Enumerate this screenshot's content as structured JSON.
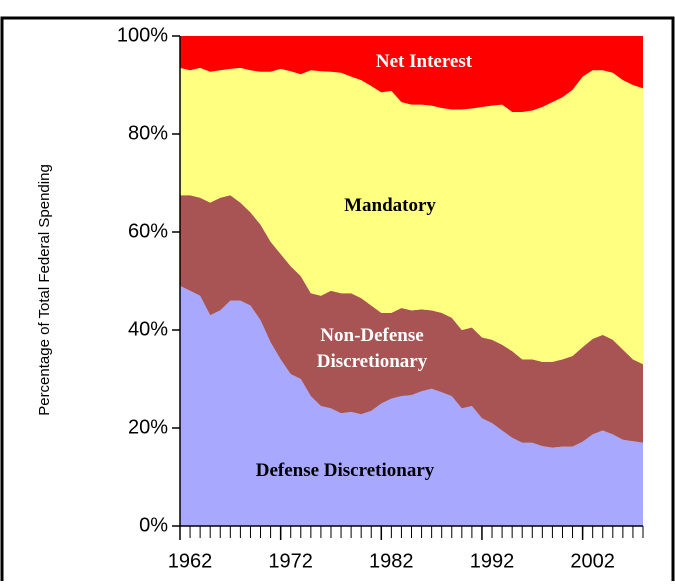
{
  "chart_data": {
    "type": "stacked_area",
    "y_label": "Percentage of Total Federal Spending",
    "x": [
      1962,
      1963,
      1964,
      1965,
      1966,
      1967,
      1968,
      1969,
      1970,
      1971,
      1972,
      1973,
      1974,
      1975,
      1976,
      1977,
      1978,
      1979,
      1980,
      1981,
      1982,
      1983,
      1984,
      1985,
      1986,
      1987,
      1988,
      1989,
      1990,
      1991,
      1992,
      1993,
      1994,
      1995,
      1996,
      1997,
      1998,
      1999,
      2000,
      2001,
      2002,
      2003,
      2004,
      2005,
      2006,
      2007,
      2008
    ],
    "xlim": [
      1962,
      2008
    ],
    "xticks": [
      1962,
      1972,
      1982,
      1992,
      2002
    ],
    "ylim": [
      0,
      100
    ],
    "yticks": [
      {
        "value": 0,
        "label": "0%"
      },
      {
        "value": 20,
        "label": "20%"
      },
      {
        "value": 40,
        "label": "40%"
      },
      {
        "value": 60,
        "label": "60%"
      },
      {
        "value": 80,
        "label": "80%"
      },
      {
        "value": 100,
        "label": "100%"
      }
    ],
    "series": [
      {
        "name": "Defense Discretionary",
        "color": "#a8a8ff",
        "values": [
          49,
          48,
          47,
          43,
          44,
          46,
          46,
          45,
          42,
          37.5,
          34,
          31,
          30,
          26.5,
          24.5,
          24,
          23,
          23.3,
          22.8,
          23.5,
          25,
          26,
          26.5,
          26.7,
          27.5,
          28,
          27.3,
          26.5,
          24,
          24.5,
          22,
          21,
          19.5,
          18,
          17,
          17,
          16.3,
          16,
          16.2,
          16.2,
          17.2,
          18.7,
          19.5,
          18.7,
          17.6,
          17.3,
          17
        ]
      },
      {
        "name": "Non-Defense Discretionary",
        "color": "#a85454",
        "values": [
          18.5,
          19.5,
          20,
          23,
          23,
          21.5,
          20,
          19,
          19.5,
          20.5,
          21.5,
          22,
          21,
          21,
          22.5,
          24,
          24.5,
          24.2,
          23.7,
          21.5,
          18.5,
          17.5,
          18,
          17.3,
          16.7,
          16,
          16.2,
          16,
          16,
          16,
          16.5,
          17,
          17.5,
          17.7,
          17,
          17,
          17.2,
          17.5,
          17.8,
          18.5,
          19.3,
          19.5,
          19.5,
          19.3,
          18.4,
          16.7,
          16
        ]
      },
      {
        "name": "Mandatory",
        "color": "#ffff80",
        "values": [
          26,
          25.5,
          26.5,
          26.7,
          26,
          25.8,
          27.5,
          29,
          31.2,
          34.7,
          37.8,
          39.8,
          41.2,
          45.5,
          45.8,
          44.7,
          45,
          44.2,
          44.5,
          44.8,
          45,
          45.3,
          42,
          42,
          41.8,
          41.8,
          41.8,
          42.5,
          45,
          44.7,
          47,
          47.8,
          49,
          48.8,
          50.5,
          50.8,
          52,
          53,
          53.5,
          54.3,
          55.2,
          54.8,
          54,
          54.5,
          55,
          56,
          56.3
        ]
      },
      {
        "name": "Net Interest",
        "color": "#ff0000",
        "values": [
          6.5,
          7,
          6.5,
          7.3,
          7,
          6.7,
          6.5,
          7,
          7.3,
          7.3,
          6.7,
          7.2,
          7.8,
          7,
          7.2,
          7.3,
          7.5,
          8.3,
          9,
          10.2,
          11.5,
          11.2,
          13.5,
          14,
          14,
          14.2,
          14.7,
          15,
          15,
          14.8,
          14.5,
          14.2,
          14,
          15.5,
          15.5,
          15.2,
          14.5,
          13.5,
          12.5,
          11,
          8.3,
          7,
          7,
          7.5,
          9,
          10,
          10.7
        ]
      }
    ]
  }
}
